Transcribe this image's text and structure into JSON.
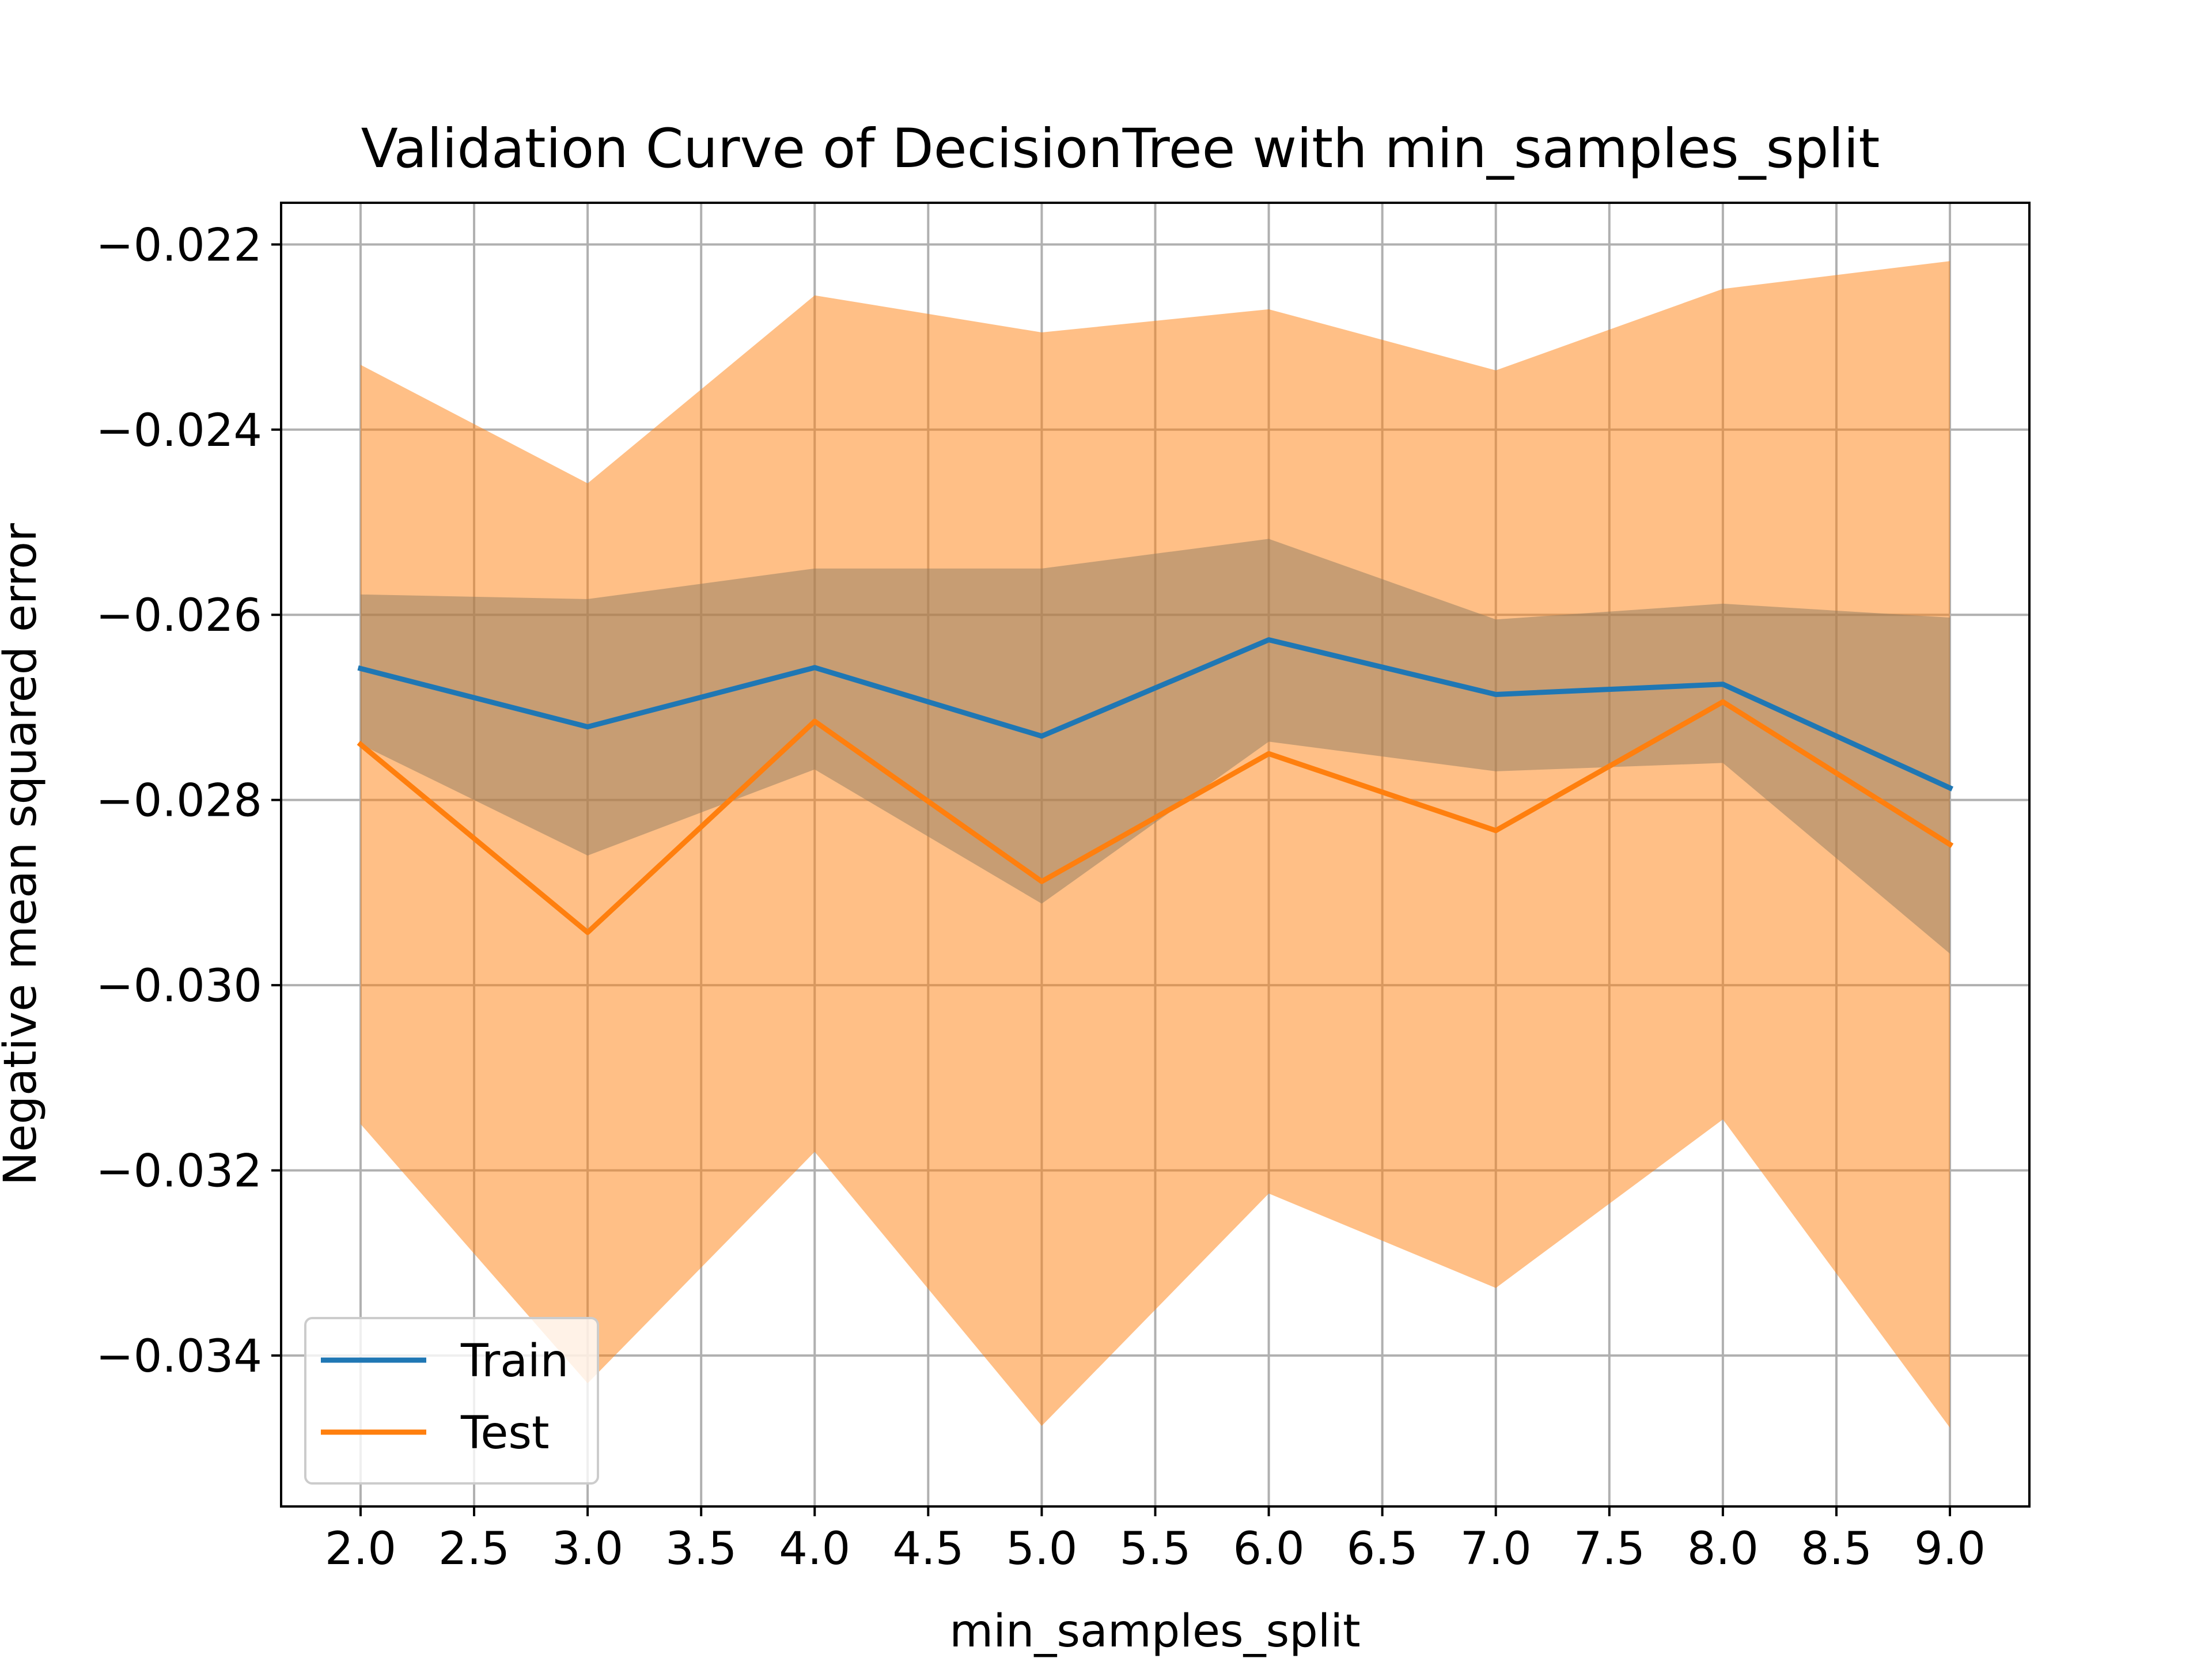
{
  "chart_data": {
    "type": "line",
    "title": "Validation Curve of DecisionTree with min_samples_split",
    "xlabel": "min_samples_split",
    "ylabel": "Negative mean squared error",
    "x": [
      2,
      3,
      4,
      5,
      6,
      7,
      8,
      9
    ],
    "xlim": [
      1.65,
      9.35
    ],
    "ylim": [
      -0.03563,
      -0.02155
    ],
    "x_ticks": [
      2.0,
      2.5,
      3.0,
      3.5,
      4.0,
      4.5,
      5.0,
      5.5,
      6.0,
      6.5,
      7.0,
      7.5,
      8.0,
      8.5,
      9.0
    ],
    "x_tick_labels": [
      "2.0",
      "2.5",
      "3.0",
      "3.5",
      "4.0",
      "4.5",
      "5.0",
      "5.5",
      "6.0",
      "6.5",
      "7.0",
      "7.5",
      "8.0",
      "8.5",
      "9.0"
    ],
    "y_ticks": [
      -0.022,
      -0.024,
      -0.026,
      -0.028,
      -0.03,
      -0.032,
      -0.034
    ],
    "y_tick_labels": [
      "−0.022",
      "−0.024",
      "−0.026",
      "−0.028",
      "−0.030",
      "−0.032",
      "−0.034"
    ],
    "grid": true,
    "legend_position": "lower-left",
    "series": [
      {
        "name": "Train",
        "color": "#1f77b4",
        "values": [
          -0.02658,
          -0.02721,
          -0.02657,
          -0.02731,
          -0.02627,
          -0.02686,
          -0.02675,
          -0.02787
        ],
        "band_upper": [
          -0.02578,
          -0.02583,
          -0.0255,
          -0.0255,
          -0.02518,
          -0.02605,
          -0.02588,
          -0.02603
        ],
        "band_lower": [
          -0.0274,
          -0.0286,
          -0.02767,
          -0.02912,
          -0.02737,
          -0.02769,
          -0.0276,
          -0.02966
        ]
      },
      {
        "name": "Test",
        "color": "#ff7f0e",
        "values": [
          -0.0274,
          -0.02943,
          -0.02715,
          -0.02888,
          -0.0275,
          -0.02833,
          -0.02694,
          -0.02848
        ],
        "band_upper": [
          -0.0233,
          -0.02458,
          -0.02255,
          -0.02295,
          -0.0227,
          -0.02336,
          -0.02248,
          -0.02218
        ],
        "band_lower": [
          -0.0315,
          -0.0343,
          -0.0318,
          -0.03476,
          -0.03225,
          -0.03327,
          -0.03145,
          -0.03478
        ]
      }
    ]
  }
}
